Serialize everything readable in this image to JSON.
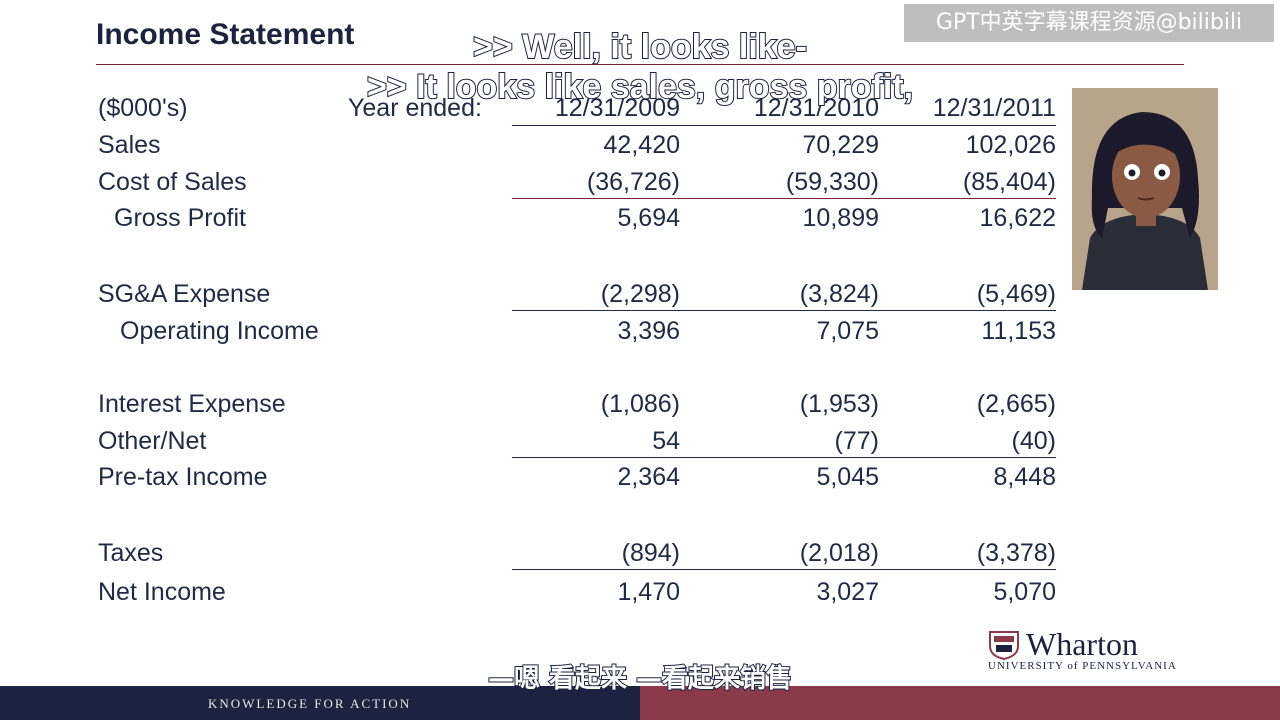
{
  "slide": {
    "title": "Income Statement",
    "watermark": "GPT中英字幕课程资源@bilibili",
    "caption_line1": ">> Well, it looks like-",
    "caption_line2": ">> It looks like sales, gross profit,",
    "caption_chinese": "—嗯 看起来 —看起来销售",
    "footer_text": "KNOWLEDGE FOR ACTION",
    "logo_word": "Wharton",
    "logo_sub": "UNIVERSITY of PENNSYLVANIA"
  },
  "statement": {
    "units": "($000's)",
    "year_label": "Year ended:",
    "years": [
      "12/31/2009",
      "12/31/2010",
      "12/31/2011"
    ],
    "rows": [
      {
        "label": "Sales",
        "values": [
          "42,420",
          "70,229",
          "102,026"
        ]
      },
      {
        "label": "Cost of Sales",
        "values": [
          "(36,726)",
          "(59,330)",
          "(85,404)"
        ]
      },
      {
        "label": "Gross Profit",
        "values": [
          "5,694",
          "10,899",
          "16,622"
        ]
      },
      {
        "label": "SG&A Expense",
        "values": [
          "(2,298)",
          "(3,824)",
          "(5,469)"
        ]
      },
      {
        "label": "Operating Income",
        "values": [
          "3,396",
          "7,075",
          "11,153"
        ]
      },
      {
        "label": "Interest Expense",
        "values": [
          "(1,086)",
          "(1,953)",
          "(2,665)"
        ]
      },
      {
        "label": "Other/Net",
        "values": [
          "54",
          "(77)",
          "(40)"
        ]
      },
      {
        "label": "Pre-tax Income",
        "values": [
          "2,364",
          "5,045",
          "8,448"
        ]
      },
      {
        "label": "Taxes",
        "values": [
          "(894)",
          "(2,018)",
          "(3,378)"
        ]
      },
      {
        "label": "Net Income",
        "values": [
          "1,470",
          "3,027",
          "5,070"
        ]
      }
    ]
  },
  "colors": {
    "navy": "#1b2340",
    "maroon": "#8b3a4a"
  }
}
